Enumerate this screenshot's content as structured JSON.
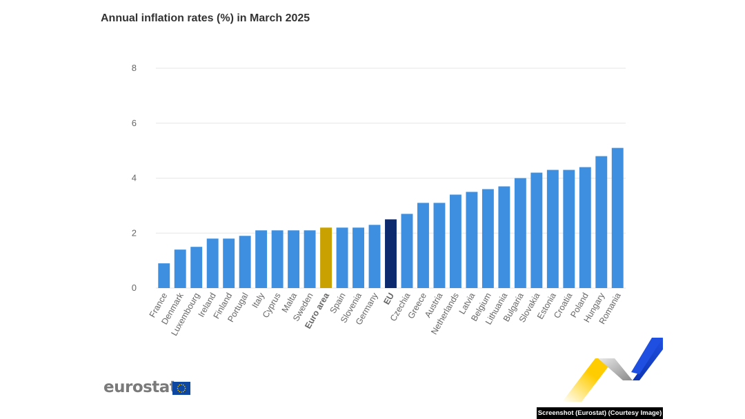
{
  "chart_data": {
    "type": "bar",
    "title": "Annual inflation rates (%) in March 2025",
    "xlabel": "",
    "ylabel": "",
    "ylim": [
      0,
      8
    ],
    "yticks": [
      0,
      2,
      4,
      6,
      8
    ],
    "grid": true,
    "categories": [
      "France",
      "Denmark",
      "Luxembourg",
      "Ireland",
      "Finland",
      "Portugal",
      "Italy",
      "Cyprus",
      "Malta",
      "Sweden",
      "Euro area",
      "Spain",
      "Slovenia",
      "Germany",
      "EU",
      "Czechia",
      "Greece",
      "Austria",
      "Netherlands",
      "Latvia",
      "Belgium",
      "Lithuania",
      "Bulgaria",
      "Slovakia",
      "Estonia",
      "Croatia",
      "Poland",
      "Hungary",
      "Romania"
    ],
    "values": [
      0.9,
      1.4,
      1.5,
      1.8,
      1.8,
      1.9,
      2.1,
      2.1,
      2.1,
      2.1,
      2.2,
      2.2,
      2.2,
      2.3,
      2.5,
      2.7,
      3.1,
      3.1,
      3.4,
      3.5,
      3.6,
      3.7,
      4.0,
      4.2,
      4.3,
      4.3,
      4.4,
      4.8,
      5.1
    ],
    "highlight": {
      "Euro area": "#c9a100",
      "EU": "#0e2a6e"
    },
    "bold_categories": [
      "Euro area",
      "EU"
    ]
  },
  "colors": {
    "bar": "#3f8fe0",
    "euro_area": "#c9a100",
    "eu": "#0e2a6e",
    "grid": "#e6e6e6",
    "tick_text": "#666666"
  },
  "branding": {
    "logo_text": "eurostat",
    "flag_icon": "eu-flag-icon"
  },
  "caption": "Screenshot (Eurostat) (Courtesy Image)"
}
